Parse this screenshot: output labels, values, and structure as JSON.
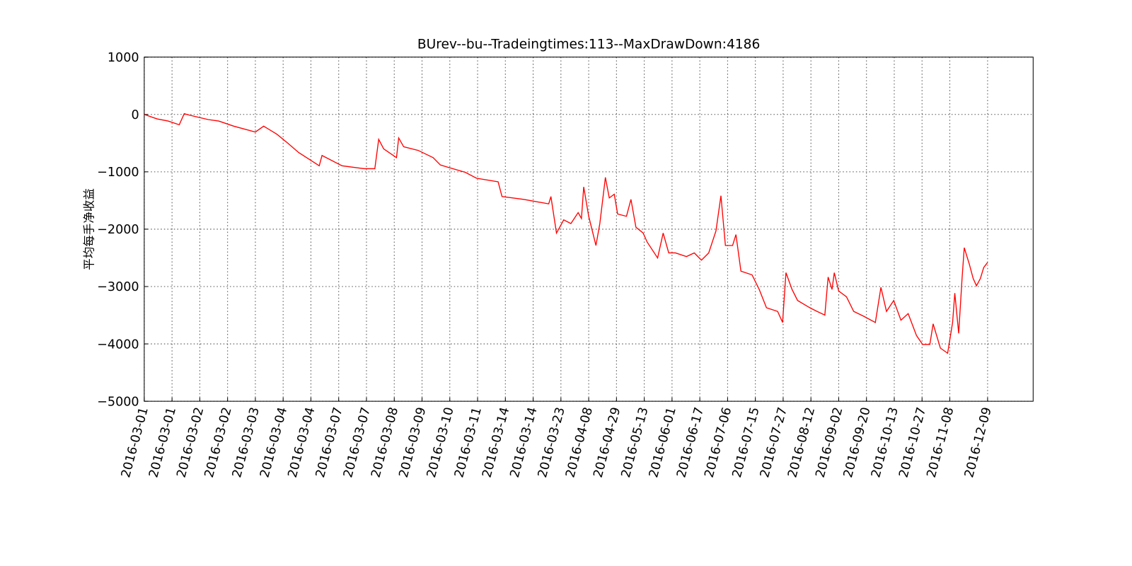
{
  "chart_data": {
    "type": "line",
    "title": "BUrev--bu--Tradeingtimes:113--MaxDrawDown:4186",
    "y_label": "平均每手净收益",
    "color": "#ff0000",
    "grid": true,
    "xlim": [
      0,
      1600
    ],
    "ylim": [
      -5000,
      1000
    ],
    "yticks": [
      {
        "value": -5000,
        "label": "−5000"
      },
      {
        "value": -4000,
        "label": "−4000"
      },
      {
        "value": -3000,
        "label": "−3000"
      },
      {
        "value": -2000,
        "label": "−2000"
      },
      {
        "value": -1000,
        "label": "−1000"
      },
      0,
      1000
    ],
    "xticks": [
      {
        "value": 0,
        "label": "2016-03-01"
      },
      {
        "value": 50,
        "label": "2016-03-01"
      },
      {
        "value": 100,
        "label": "2016-03-02"
      },
      {
        "value": 150,
        "label": "2016-03-02"
      },
      {
        "value": 200,
        "label": "2016-03-03"
      },
      {
        "value": 250,
        "label": "2016-03-04"
      },
      {
        "value": 300,
        "label": "2016-03-04"
      },
      {
        "value": 350,
        "label": "2016-03-07"
      },
      {
        "value": 400,
        "label": "2016-03-07"
      },
      {
        "value": 450,
        "label": "2016-03-08"
      },
      {
        "value": 500,
        "label": "2016-03-09"
      },
      {
        "value": 550,
        "label": "2016-03-10"
      },
      {
        "value": 600,
        "label": "2016-03-11"
      },
      {
        "value": 650,
        "label": "2016-03-14"
      },
      {
        "value": 700,
        "label": "2016-03-14"
      },
      {
        "value": 750,
        "label": "2016-03-23"
      },
      {
        "value": 800,
        "label": "2016-04-08"
      },
      {
        "value": 850,
        "label": "2016-04-29"
      },
      {
        "value": 900,
        "label": "2016-05-13"
      },
      {
        "value": 950,
        "label": "2016-06-01"
      },
      {
        "value": 1000,
        "label": "2016-06-17"
      },
      {
        "value": 1050,
        "label": "2016-07-06"
      },
      {
        "value": 1100,
        "label": "2016-07-15"
      },
      {
        "value": 1150,
        "label": "2016-07-27"
      },
      {
        "value": 1200,
        "label": "2016-08-12"
      },
      {
        "value": 1250,
        "label": "2016-09-02"
      },
      {
        "value": 1300,
        "label": "2016-09-20"
      },
      {
        "value": 1350,
        "label": "2016-10-13"
      },
      {
        "value": 1400,
        "label": "2016-10-27"
      },
      {
        "value": 1450,
        "label": "2016-11-08"
      },
      {
        "value": 1518,
        "label": "2016-12-09"
      }
    ],
    "x": [
      0,
      23,
      43,
      63,
      72,
      82,
      115,
      134,
      161,
      200,
      215,
      239,
      258,
      278,
      315,
      320,
      356,
      396,
      415,
      422,
      431,
      454,
      458,
      467,
      493,
      520,
      533,
      546,
      578,
      598,
      637,
      644,
      683,
      728,
      732,
      742,
      755,
      768,
      781,
      787,
      791,
      800,
      813,
      820,
      830,
      837,
      846,
      852,
      868,
      876,
      885,
      898,
      905,
      924,
      934,
      944,
      956,
      976,
      990,
      1003,
      1016,
      1029,
      1038,
      1046,
      1059,
      1065,
      1074,
      1094,
      1107,
      1120,
      1140,
      1149,
      1155,
      1166,
      1176,
      1198,
      1211,
      1225,
      1231,
      1238,
      1242,
      1250,
      1264,
      1277,
      1296,
      1316,
      1326,
      1336,
      1349,
      1362,
      1375,
      1390,
      1401,
      1414,
      1420,
      1433,
      1446,
      1455,
      1459,
      1466,
      1472,
      1476,
      1485,
      1492,
      1498,
      1505,
      1511,
      1518
    ],
    "values": [
      0,
      -77,
      -115,
      -179,
      13,
      -13,
      -89,
      -115,
      -204,
      -306,
      -204,
      -345,
      -498,
      -664,
      -894,
      -715,
      -894,
      -945,
      -945,
      -434,
      -600,
      -753,
      -409,
      -562,
      -626,
      -753,
      -881,
      -919,
      -1009,
      -1111,
      -1174,
      -1430,
      -1481,
      -1558,
      -1430,
      -2068,
      -1838,
      -1902,
      -1711,
      -1813,
      -1264,
      -1775,
      -2285,
      -1902,
      -1098,
      -1455,
      -1391,
      -1736,
      -1775,
      -1481,
      -1966,
      -2068,
      -2221,
      -2502,
      -2068,
      -2413,
      -2413,
      -2477,
      -2413,
      -2540,
      -2413,
      -2030,
      -1417,
      -2285,
      -2285,
      -2094,
      -2732,
      -2796,
      -3051,
      -3370,
      -3434,
      -3626,
      -2758,
      -3051,
      -3243,
      -3370,
      -3434,
      -3498,
      -2834,
      -3051,
      -2758,
      -3077,
      -3179,
      -3434,
      -3523,
      -3626,
      -3013,
      -3434,
      -3243,
      -3587,
      -3472,
      -3855,
      -4009,
      -4009,
      -3651,
      -4073,
      -4162,
      -3626,
      -3115,
      -3817,
      -2860,
      -2323,
      -2604,
      -2860,
      -2987,
      -2860,
      -2668,
      -2579
    ]
  }
}
